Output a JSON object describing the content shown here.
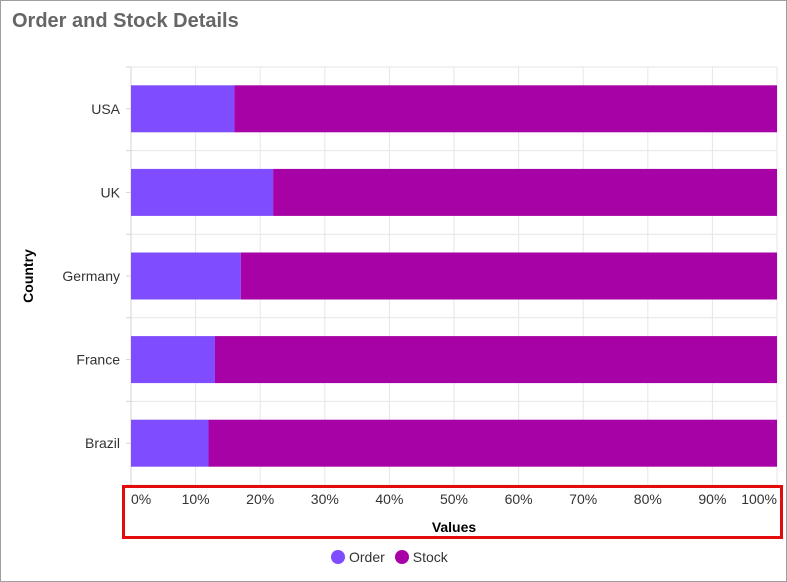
{
  "chart_data": {
    "type": "bar",
    "orientation": "horizontal",
    "stacked": "100%",
    "title": "Order and Stock Details",
    "xlabel": "Values",
    "ylabel": "Country",
    "categories": [
      "USA",
      "UK",
      "Germany",
      "France",
      "Brazil"
    ],
    "series": [
      {
        "name": "Order",
        "color": "#7f4dff",
        "values": [
          16,
          22,
          17,
          13,
          12
        ]
      },
      {
        "name": "Stock",
        "color": "#a602a6",
        "values": [
          84,
          78,
          83,
          87,
          88
        ]
      }
    ],
    "xlim": [
      0,
      100
    ],
    "xticks": [
      "0%",
      "10%",
      "20%",
      "30%",
      "40%",
      "50%",
      "60%",
      "70%",
      "80%",
      "90%",
      "100%"
    ],
    "grid": true,
    "legend_position": "bottom"
  },
  "colors": {
    "order": "#7f4dff",
    "stock": "#a602a6",
    "highlight": "#e30b0b"
  }
}
